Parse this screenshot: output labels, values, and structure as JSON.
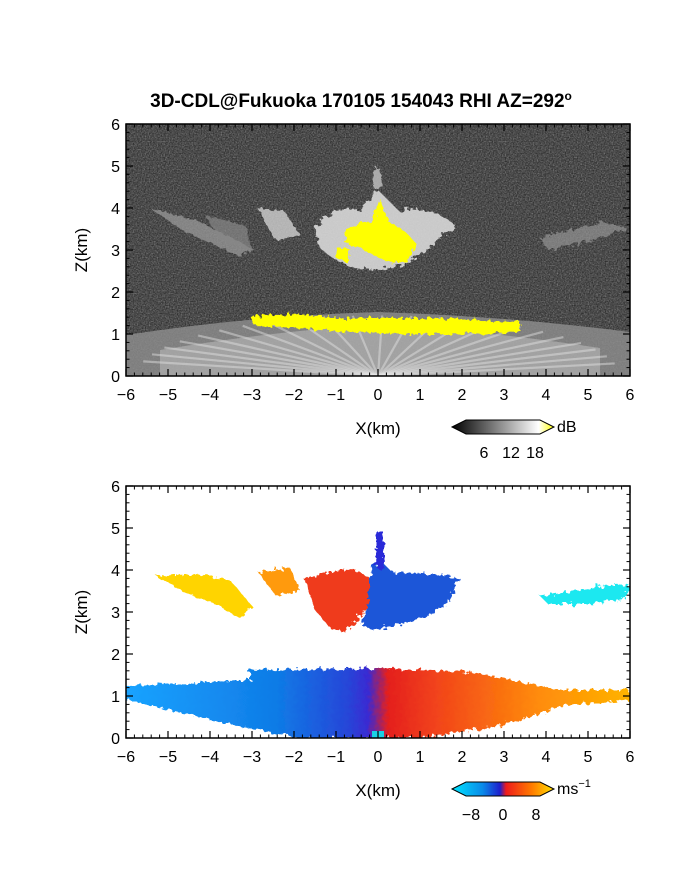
{
  "figure": {
    "title": "3D-CDL@Fukuoka 170105 154043 RHI AZ=292",
    "title_superscript": "o"
  },
  "chart_data": [
    {
      "type": "heatmap",
      "panel": "snr",
      "xlabel": "X(km)",
      "ylabel": "Z(km)",
      "xlim": [
        -6,
        6
      ],
      "ylim": [
        0,
        6
      ],
      "x_ticks": [
        "−6",
        "−5",
        "−4",
        "−3",
        "−2",
        "−1",
        "0",
        "1",
        "2",
        "3",
        "4",
        "5",
        "6"
      ],
      "y_ticks": [
        "0",
        "1",
        "2",
        "3",
        "4",
        "5",
        "6"
      ],
      "colorbar": {
        "unit": "dB",
        "ticks": [
          "6",
          "12",
          "18"
        ],
        "colors": [
          "#000000",
          "#ffffff",
          "#ffff00"
        ]
      }
    },
    {
      "type": "heatmap",
      "panel": "doppler_velocity",
      "xlabel": "X(km)",
      "ylabel": "Z(km)",
      "xlim": [
        -6,
        6
      ],
      "ylim": [
        0,
        6
      ],
      "x_ticks": [
        "−6",
        "−5",
        "−4",
        "−3",
        "−2",
        "−1",
        "0",
        "1",
        "2",
        "3",
        "4",
        "5",
        "6"
      ],
      "y_ticks": [
        "0",
        "1",
        "2",
        "3",
        "4",
        "5",
        "6"
      ],
      "colorbar": {
        "unit": "ms",
        "unit_superscript": "−1",
        "ticks": [
          "−8",
          "0",
          "8"
        ],
        "colors": [
          "#00e5ff",
          "#0a8ae8",
          "#1e1ecc",
          "#ee1b1b",
          "#ff7a00",
          "#ffe000"
        ]
      }
    }
  ]
}
